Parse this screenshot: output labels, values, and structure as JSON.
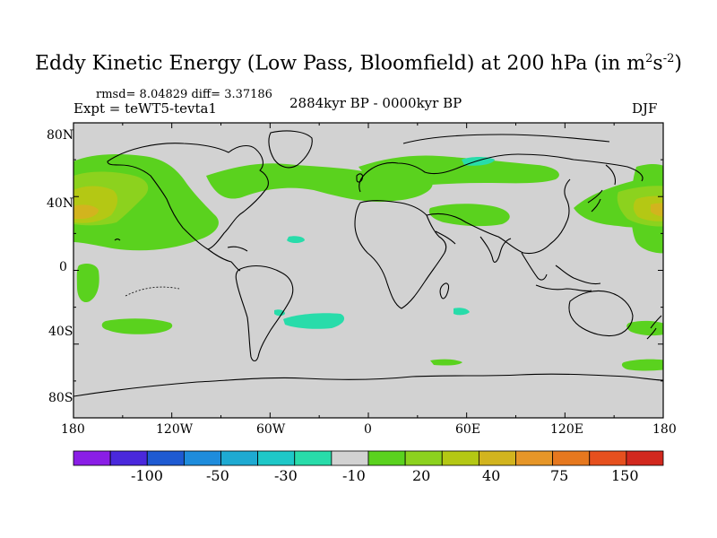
{
  "title": {
    "main": "Eddy Kinetic Energy (Low Pass, Bloomfield) at 200 hPa (in m",
    "sup1": "2",
    "mid": "s",
    "sup2": "-2",
    "end": ")"
  },
  "stats": "rmsd= 8.04829 diff= 3.37186",
  "expt": "Expt = teWT5-tevta1",
  "period": "2884kyr BP - 0000kyr BP",
  "season": "DJF",
  "lat_labels": [
    "80N",
    "40N",
    "0",
    "40S",
    "80S"
  ],
  "lon_labels": [
    "180",
    "120W",
    "60W",
    "0",
    "60E",
    "120E",
    "180"
  ],
  "colorbar": {
    "colors": [
      "#8a1ee6",
      "#4a28dc",
      "#1e5ad2",
      "#1e8cdc",
      "#1eaad2",
      "#1ec8c8",
      "#28dcaa",
      "#d2d2d2",
      "#5ad21e",
      "#8cd21e",
      "#b4c814",
      "#d2b41e",
      "#e69628",
      "#e6781e",
      "#e6501e",
      "#d2281e"
    ],
    "labels": [
      "-100",
      "-50",
      "-30",
      "-10",
      "20",
      "40",
      "75",
      "150"
    ]
  },
  "colors": {
    "ocean_land": "#d2d2d2",
    "positive_low": "#5ad21e",
    "positive_mid": "#8cd21e",
    "positive_high": "#b4c814",
    "positive_peak": "#d2b41e",
    "negative_low": "#28dcaa",
    "coast": "#000000"
  }
}
